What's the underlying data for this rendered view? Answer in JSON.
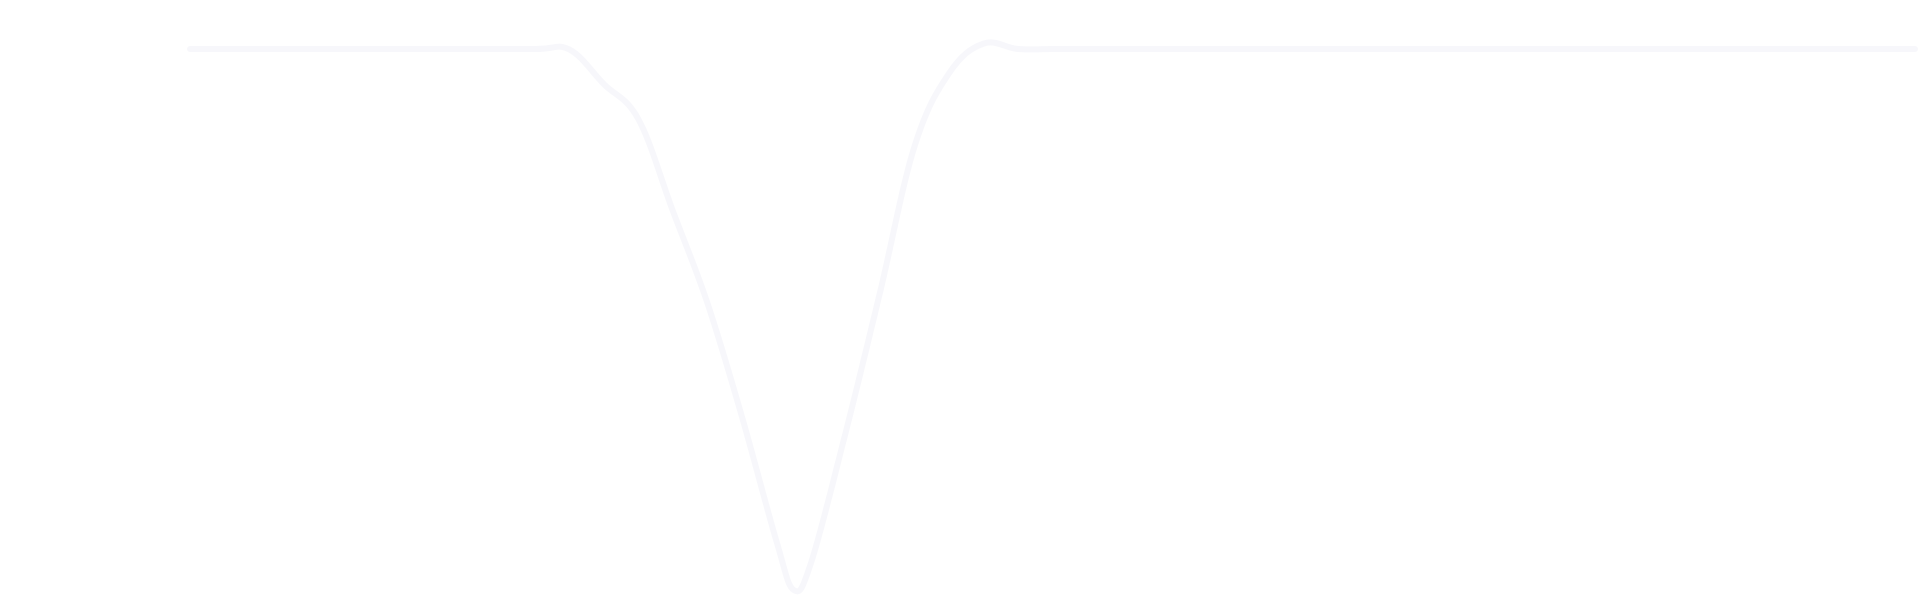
{
  "chart_data": {
    "type": "line",
    "title": "",
    "xlabel": "",
    "ylabel": "",
    "grid": false,
    "legend": "none",
    "x": [
      0,
      5,
      10,
      15,
      20,
      22,
      24,
      26,
      28,
      30,
      32,
      34,
      35,
      36,
      38,
      40,
      42,
      44,
      46,
      48,
      50,
      52,
      55,
      60,
      70,
      80,
      90,
      100
    ],
    "series": [
      {
        "values": [
          1.0,
          1.0,
          1.0,
          1.0,
          1.0,
          0.999,
          0.935,
          0.87,
          0.7,
          0.53,
          0.32,
          0.09,
          0.0,
          0.05,
          0.29,
          0.55,
          0.82,
          0.955,
          1.01,
          1.0,
          1.0,
          1.0,
          1.0,
          1.0,
          1.0,
          1.0,
          1.0,
          1.0
        ],
        "color": "#f7f7fb"
      }
    ],
    "xlim": [
      0,
      100
    ],
    "ylim": [
      0,
      1.05
    ]
  }
}
